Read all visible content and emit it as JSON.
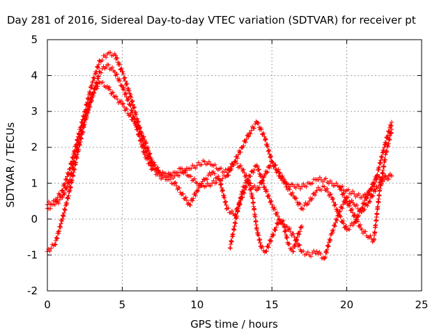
{
  "chart_data": {
    "type": "scatter",
    "title": "Day 281 of 2016, Sidereal Day-to-day VTEC variation (SDTVAR) for receiver pt",
    "xlabel": "GPS time / hours",
    "ylabel": "SDTVAR / TECUs",
    "xlim": [
      0,
      25
    ],
    "ylim": [
      -2,
      5
    ],
    "xticks": [
      "0",
      "5",
      "10",
      "15",
      "20",
      "25"
    ],
    "yticks": [
      "-2",
      "-1",
      "0",
      "1",
      "2",
      "3",
      "4",
      "5"
    ],
    "grid": true,
    "legend": "none",
    "marker": "+",
    "color": "#ff0000",
    "series": [
      {
        "x": [
          0.0,
          0.5,
          1.0,
          1.5,
          2.0,
          2.5,
          3.0,
          3.5,
          4.0,
          4.5,
          5.0,
          5.5,
          6.0,
          6.5,
          7.0,
          7.5,
          8.0,
          8.5,
          9.0,
          9.5,
          10.0,
          10.5,
          11.0,
          11.5,
          12.0,
          12.5,
          13.0,
          13.5,
          14.0,
          14.5,
          15.0,
          15.5,
          16.0,
          16.5,
          17.0,
          17.5,
          18.0,
          18.5,
          19.0,
          19.5,
          20.0,
          20.5,
          21.0,
          21.5,
          22.0,
          22.5,
          23.0
        ],
        "y": [
          0.4,
          0.5,
          0.8,
          1.4,
          2.2,
          3.0,
          3.8,
          4.4,
          4.6,
          4.6,
          4.1,
          3.5,
          2.8,
          2.0,
          1.5,
          1.3,
          1.2,
          1.2,
          1.3,
          1.4,
          1.5,
          1.6,
          1.5,
          1.4,
          1.3,
          1.6,
          2.0,
          2.4,
          2.7,
          2.3,
          1.6,
          1.2,
          1.0,
          0.9,
          0.9,
          1.0,
          1.1,
          1.1,
          1.0,
          0.9,
          0.8,
          0.7,
          0.6,
          0.7,
          1.2,
          2.0,
          2.7
        ]
      },
      {
        "x": [
          0.0,
          0.5,
          1.0,
          1.5,
          2.0,
          2.5,
          3.0,
          3.5,
          4.0,
          4.5,
          5.0,
          5.5,
          6.0,
          6.5,
          7.0,
          7.5,
          8.0,
          8.5,
          9.0,
          9.5,
          10.0,
          10.5,
          11.0,
          11.5,
          12.0,
          12.5,
          13.0,
          13.5,
          14.0,
          14.5,
          15.0,
          15.5,
          16.0,
          16.5,
          17.0,
          17.5,
          18.0,
          18.5,
          19.0,
          19.5,
          20.0,
          20.5,
          21.0,
          21.5,
          22.0,
          22.5,
          23.0
        ],
        "y": [
          -0.9,
          -0.7,
          0.0,
          0.8,
          1.8,
          2.7,
          3.4,
          4.1,
          4.3,
          4.1,
          3.7,
          3.2,
          2.5,
          1.8,
          1.4,
          1.2,
          1.1,
          1.0,
          0.7,
          0.4,
          0.8,
          1.1,
          1.3,
          1.1,
          0.3,
          0.1,
          0.6,
          1.2,
          1.5,
          0.9,
          0.4,
          0.0,
          -0.2,
          -0.5,
          -0.9,
          -1.0,
          -0.9,
          -1.1,
          -0.4,
          0.2,
          0.6,
          0.4,
          0.2,
          0.5,
          0.9,
          1.1,
          1.2
        ]
      },
      {
        "x": [
          0.0,
          0.5,
          1.0,
          1.5,
          2.0,
          2.5,
          3.0,
          3.5,
          4.0,
          4.5,
          5.0,
          5.5,
          6.0,
          6.5,
          7.0,
          7.5,
          8.0,
          8.5,
          9.0,
          9.5,
          10.0,
          10.5,
          11.0,
          11.5,
          12.0,
          12.5,
          13.0,
          13.5,
          14.0,
          14.5,
          15.0,
          15.5,
          16.0,
          16.5,
          17.0,
          17.5,
          18.0,
          18.5,
          19.0,
          19.5,
          20.0,
          20.5,
          21.0,
          21.5,
          22.0,
          22.5,
          23.0
        ],
        "y": [
          0.3,
          0.4,
          0.6,
          1.1,
          2.0,
          2.8,
          3.5,
          3.8,
          3.7,
          3.4,
          3.2,
          2.9,
          2.6,
          2.2,
          1.6,
          1.3,
          1.2,
          1.3,
          1.4,
          1.2,
          1.0,
          0.9,
          1.0,
          1.1,
          1.2,
          1.6,
          1.4,
          1.0,
          0.8,
          1.2,
          1.6,
          1.3,
          0.9,
          0.6,
          0.3,
          0.5,
          0.8,
          0.9,
          0.6,
          0.1,
          -0.3,
          -0.1,
          0.3,
          0.8,
          1.1,
          1.2,
          1.2
        ]
      },
      {
        "x": [
          12.2,
          12.5,
          12.8,
          13.1,
          13.4,
          13.7,
          14.0,
          14.3,
          14.6,
          14.9,
          15.2,
          15.5,
          15.8,
          16.1,
          16.4,
          16.7,
          17.0
        ],
        "y": [
          -0.8,
          -0.2,
          0.4,
          0.9,
          1.1,
          0.6,
          -0.3,
          -0.8,
          -0.9,
          -0.6,
          -0.3,
          0.0,
          -0.2,
          -0.7,
          -0.9,
          -0.5,
          -0.2
        ]
      },
      {
        "x": [
          19.5,
          20.0,
          20.5,
          21.0,
          21.5,
          21.8,
          22.2,
          22.6,
          23.0
        ],
        "y": [
          0.9,
          0.5,
          0.1,
          -0.3,
          -0.5,
          -0.6,
          0.8,
          1.8,
          2.5
        ]
      }
    ]
  }
}
